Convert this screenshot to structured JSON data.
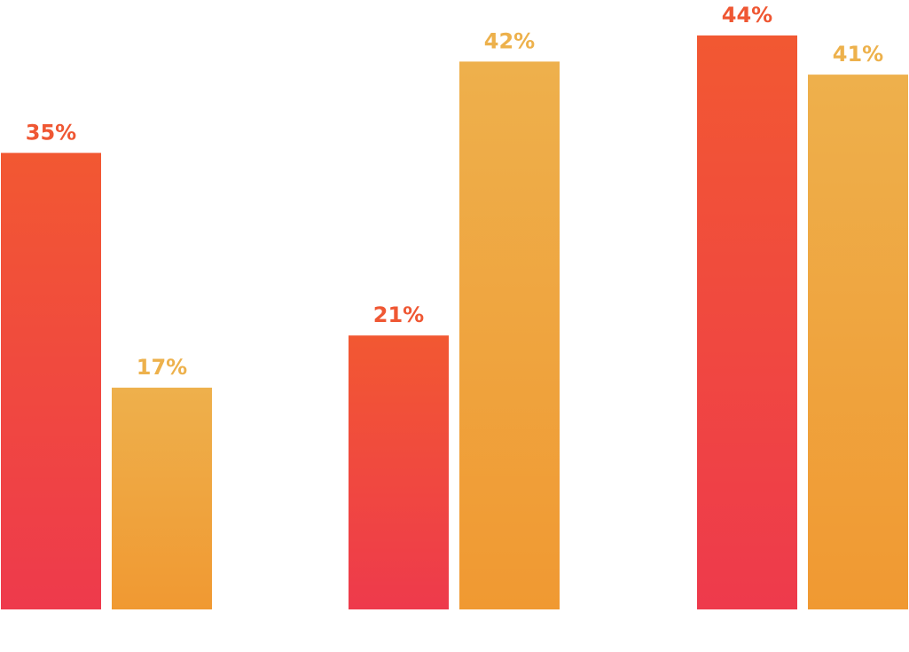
{
  "chart_data": {
    "type": "bar",
    "categories": [
      "",
      "",
      ""
    ],
    "series": [
      {
        "values": [
          35,
          21,
          44
        ],
        "labels": [
          "35%",
          "21%",
          "44%"
        ],
        "label_color": "#EF5733",
        "gradient": [
          "#F25832",
          "#EE3A4C"
        ]
      },
      {
        "values": [
          17,
          42,
          41
        ],
        "labels": [
          "17%",
          "42%",
          "41%"
        ],
        "label_color": "#EDB14C",
        "gradient": [
          "#EEB04C",
          "#F09932"
        ]
      }
    ],
    "ylim": [
      0,
      44
    ],
    "grid": false,
    "legend": "none"
  }
}
